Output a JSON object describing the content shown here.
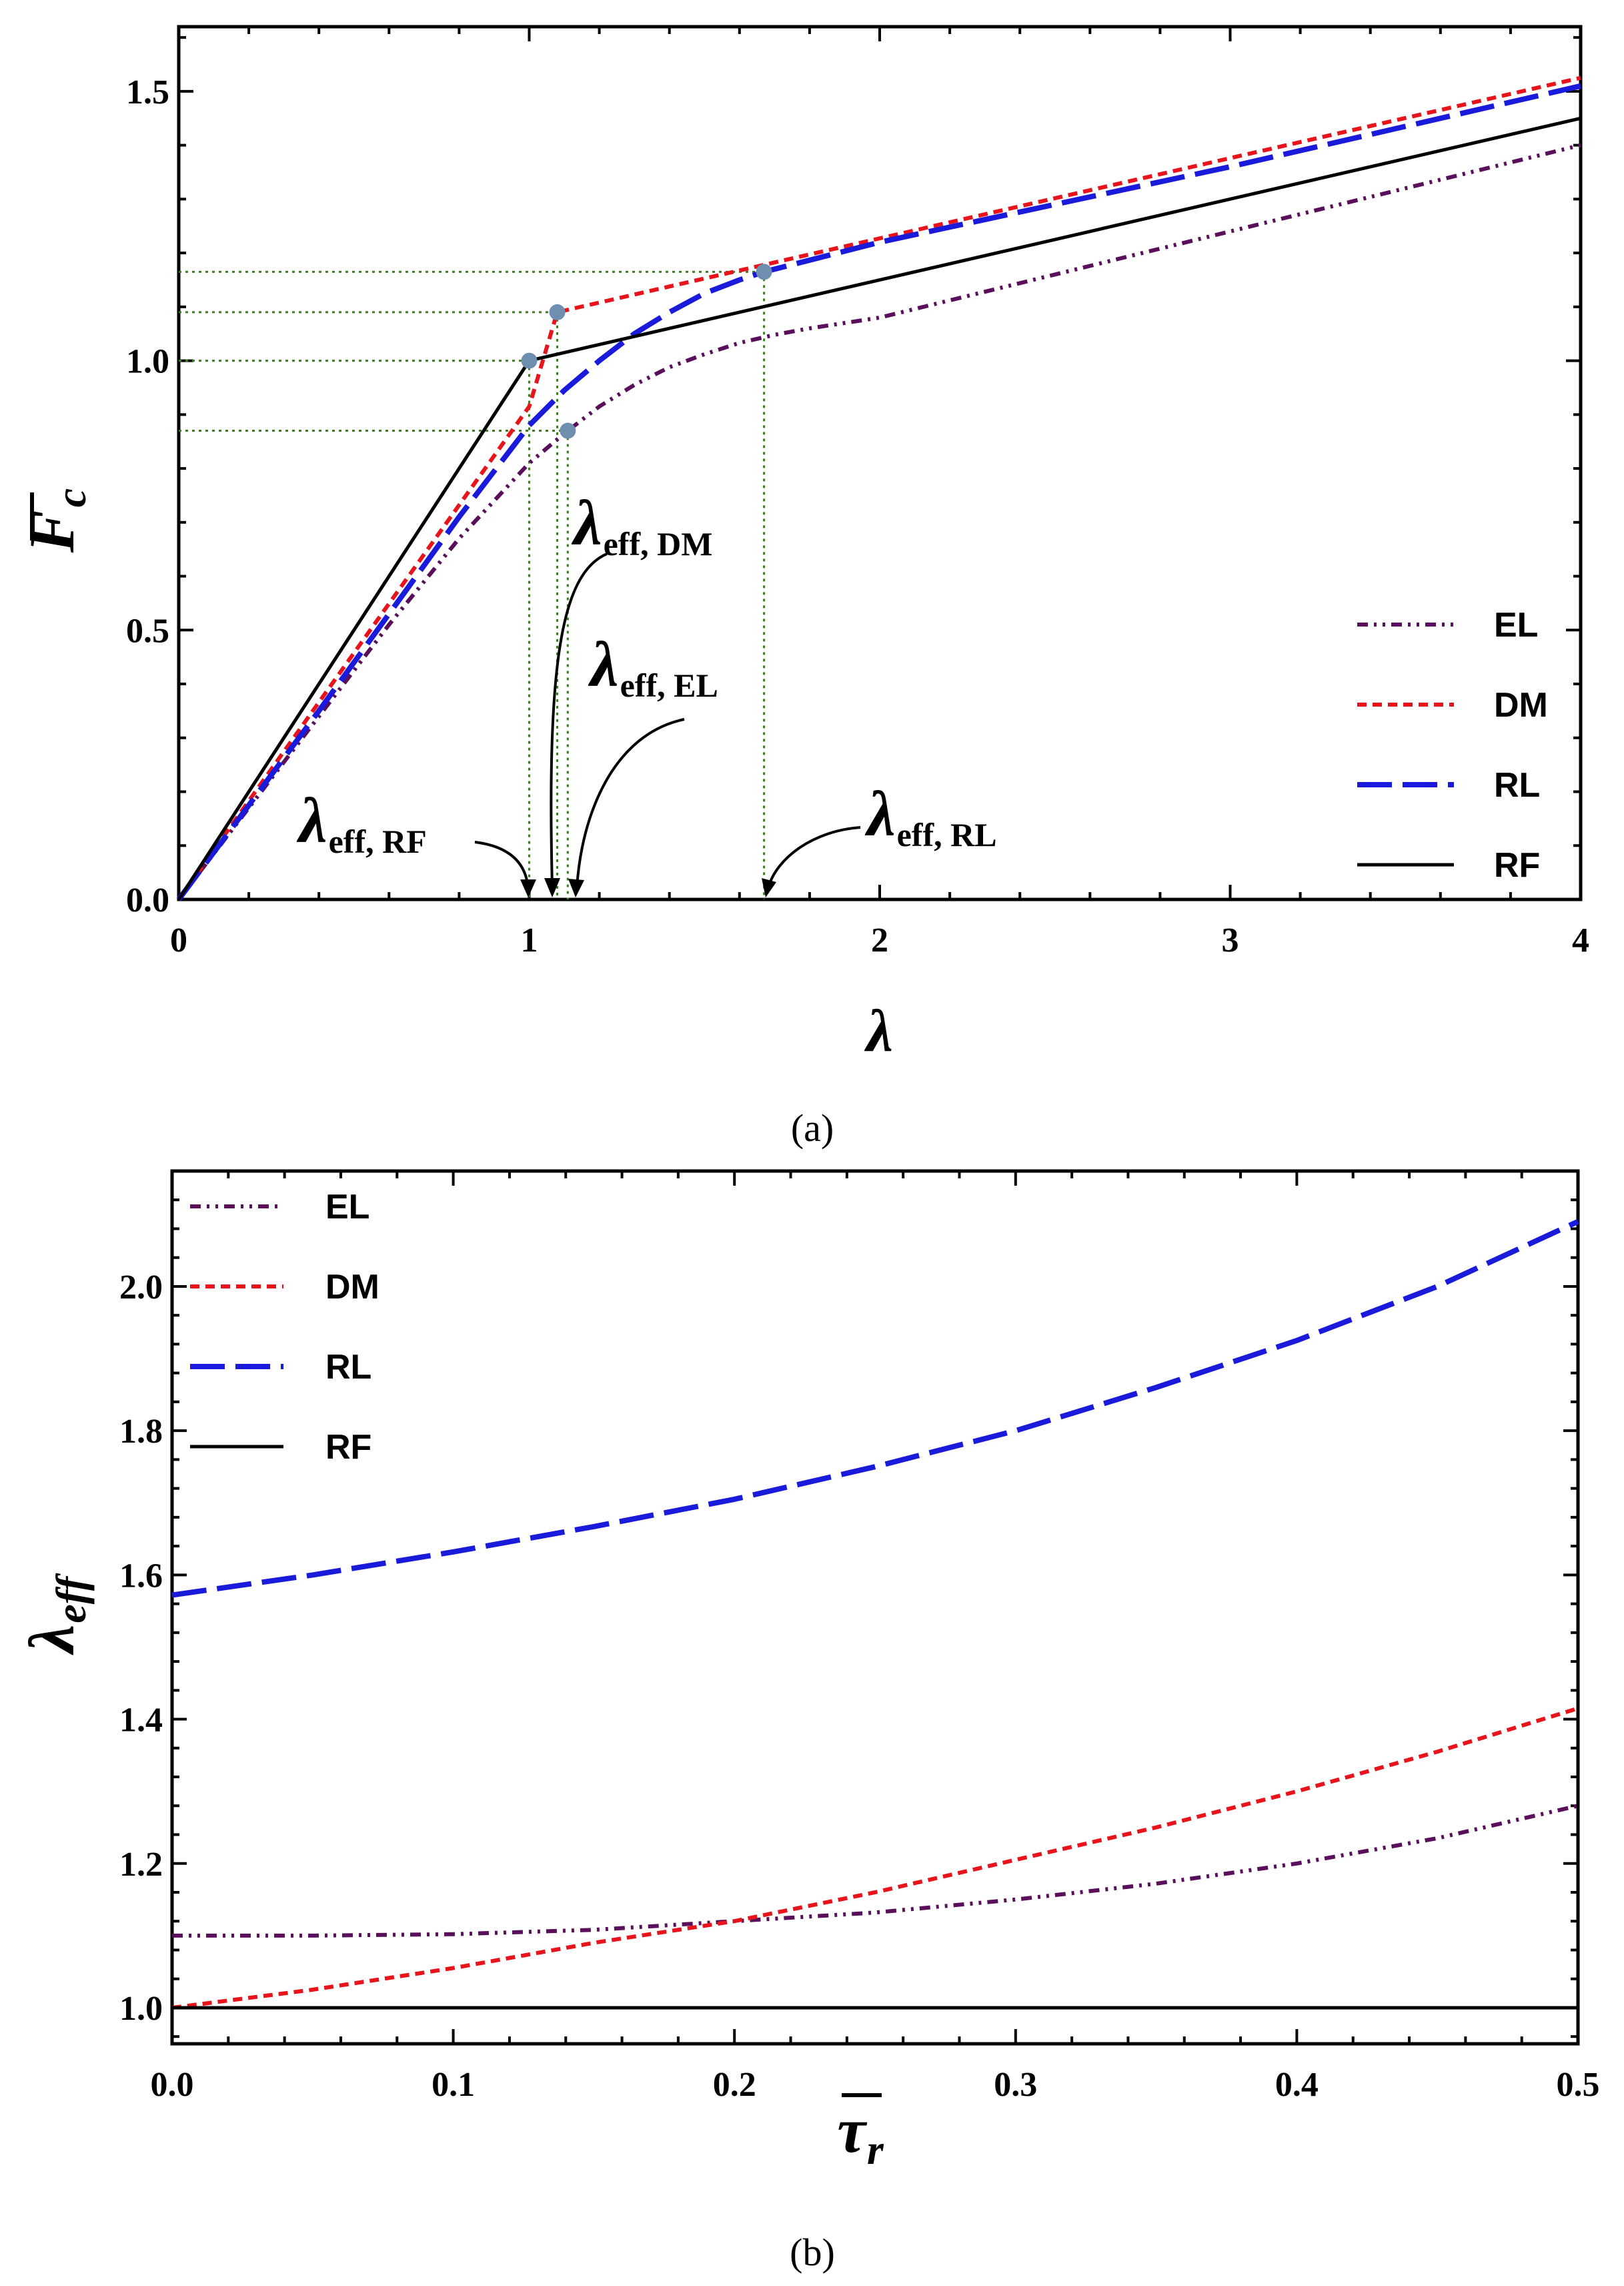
{
  "chart_data": [
    {
      "panel": "a",
      "type": "line",
      "panel_label": "(a)",
      "xlabel": "λ",
      "ylabel": "F",
      "ylabel_sub": "c",
      "xlim": [
        0,
        4
      ],
      "ylim": [
        0,
        1.62
      ],
      "xticks": [
        0,
        1,
        2,
        3,
        4
      ],
      "xtick_labels": [
        "0",
        "1",
        "2",
        "3",
        "4"
      ],
      "yticks": [
        0,
        0.5,
        1.0,
        1.5
      ],
      "ytick_labels": [
        "0.0",
        "0.5",
        "1.0",
        "1.5"
      ],
      "legend": {
        "position": "bottom-right",
        "entries": [
          "EL",
          "DM",
          "RL",
          "RF"
        ]
      },
      "series": [
        {
          "name": "EL",
          "color": "#5a0f5a",
          "style": "dash-dot-dot",
          "x": [
            0,
            0.2,
            0.4,
            0.6,
            0.8,
            1.0,
            1.1,
            1.2,
            1.3,
            1.4,
            1.5,
            1.6,
            1.7,
            1.8,
            2.0,
            2.5,
            3.0,
            3.5,
            4.0
          ],
          "y": [
            0,
            0.17,
            0.34,
            0.51,
            0.67,
            0.81,
            0.865,
            0.915,
            0.955,
            0.988,
            1.012,
            1.033,
            1.048,
            1.06,
            1.08,
            1.16,
            1.24,
            1.32,
            1.4
          ]
        },
        {
          "name": "DM",
          "color": "#e8141c",
          "style": "short-dash",
          "x": [
            0,
            1.0,
            1.08,
            4.0
          ],
          "y": [
            0,
            0.915,
            1.09,
            1.525
          ]
        },
        {
          "name": "RL",
          "color": "#1a1adb",
          "style": "long-dash",
          "x": [
            0,
            0.2,
            0.4,
            0.6,
            0.8,
            1.0,
            1.1,
            1.2,
            1.3,
            1.4,
            1.5,
            1.6,
            1.67,
            2.0,
            2.5,
            3.0,
            3.5,
            4.0
          ],
          "y": [
            0,
            0.175,
            0.35,
            0.53,
            0.71,
            0.88,
            0.945,
            1.0,
            1.05,
            1.09,
            1.125,
            1.15,
            1.165,
            1.22,
            1.29,
            1.36,
            1.435,
            1.51
          ]
        },
        {
          "name": "RF",
          "color": "#000000",
          "style": "solid",
          "x": [
            0,
            1.0,
            4.0
          ],
          "y": [
            0,
            1.0,
            1.45
          ]
        }
      ],
      "guide_color": "#3c7d23",
      "markers": [
        {
          "name": "RF",
          "x": 1.0,
          "y": 1.0
        },
        {
          "name": "DM",
          "x": 1.08,
          "y": 1.09
        },
        {
          "name": "EL",
          "x": 1.11,
          "y": 0.87
        },
        {
          "name": "RL",
          "x": 1.67,
          "y": 1.165
        }
      ],
      "marker_color": "#6f8fb0",
      "annotations": [
        {
          "sym": "λ",
          "sub": "eff, RF"
        },
        {
          "sym": "λ",
          "sub": "eff, DM"
        },
        {
          "sym": "λ",
          "sub": "eff, EL"
        },
        {
          "sym": "λ",
          "sub": "eff, RL"
        }
      ]
    },
    {
      "panel": "b",
      "type": "line",
      "panel_label": "(b)",
      "xlabel": "τ",
      "xlabel_sub": "r",
      "ylabel": "λ",
      "ylabel_sub": "eff",
      "xlim": [
        0,
        0.5
      ],
      "ylim": [
        0.95,
        2.16
      ],
      "xticks": [
        0,
        0.1,
        0.2,
        0.3,
        0.4,
        0.5
      ],
      "xtick_labels": [
        "0.0",
        "0.1",
        "0.2",
        "0.3",
        "0.4",
        "0.5"
      ],
      "yticks": [
        1.0,
        1.2,
        1.4,
        1.6,
        1.8,
        2.0
      ],
      "ytick_labels": [
        "1.0",
        "1.2",
        "1.4",
        "1.6",
        "1.8",
        "2.0"
      ],
      "legend": {
        "position": "top-left",
        "entries": [
          "EL",
          "DM",
          "RL",
          "RF"
        ]
      },
      "series": [
        {
          "name": "EL",
          "color": "#5a0f5a",
          "style": "dash-dot-dot",
          "x": [
            0,
            0.05,
            0.1,
            0.15,
            0.2,
            0.25,
            0.3,
            0.35,
            0.4,
            0.45,
            0.5
          ],
          "y": [
            1.1,
            1.1,
            1.102,
            1.108,
            1.12,
            1.132,
            1.15,
            1.172,
            1.2,
            1.235,
            1.28
          ]
        },
        {
          "name": "DM",
          "color": "#e8141c",
          "style": "short-dash",
          "x": [
            0,
            0.05,
            0.1,
            0.15,
            0.2,
            0.25,
            0.3,
            0.35,
            0.4,
            0.45,
            0.5
          ],
          "y": [
            1.0,
            1.025,
            1.055,
            1.09,
            1.12,
            1.16,
            1.205,
            1.25,
            1.3,
            1.355,
            1.415
          ]
        },
        {
          "name": "RL",
          "color": "#1a1adb",
          "style": "long-dash",
          "x": [
            0,
            0.05,
            0.1,
            0.15,
            0.2,
            0.25,
            0.3,
            0.35,
            0.4,
            0.45,
            0.5
          ],
          "y": [
            1.572,
            1.6,
            1.632,
            1.667,
            1.705,
            1.75,
            1.8,
            1.86,
            1.925,
            2.0,
            2.09
          ]
        },
        {
          "name": "RF",
          "color": "#000000",
          "style": "solid",
          "x": [
            0,
            0.5
          ],
          "y": [
            1.0,
            1.0
          ]
        }
      ]
    }
  ]
}
